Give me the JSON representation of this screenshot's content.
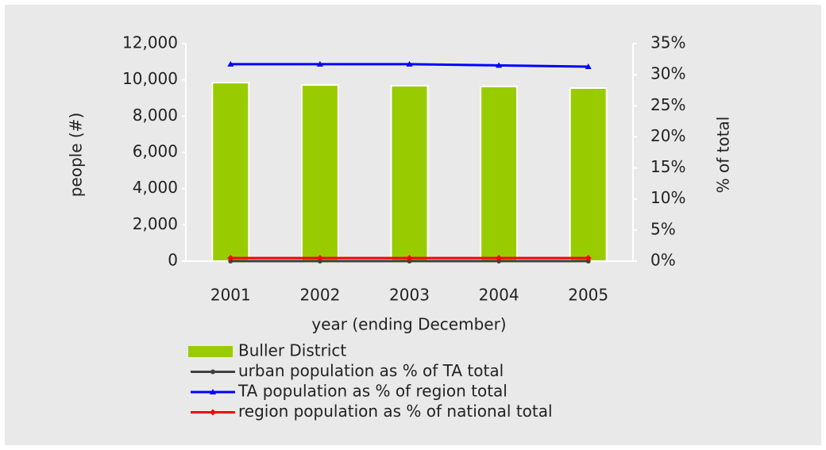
{
  "chart_data": {
    "type": "bar",
    "categories": [
      "2001",
      "2002",
      "2003",
      "2004",
      "2005"
    ],
    "series": [
      {
        "name": "Buller District",
        "color": "#99cc00",
        "values": [
          9850,
          9720,
          9680,
          9640,
          9550
        ]
      },
      {
        "name": "urban population as % of TA total",
        "color": "#404040",
        "axis": "y2",
        "type": "line",
        "marker": "circle",
        "values": [
          0,
          0,
          0,
          0,
          0
        ]
      },
      {
        "name": "TA population as % of region total",
        "color": "#0000ff",
        "axis": "y2",
        "type": "line",
        "marker": "triangle",
        "values": [
          31.7,
          31.7,
          31.7,
          31.5,
          31.3
        ]
      },
      {
        "name": "region population as % of national total",
        "color": "#ff0000",
        "axis": "y2",
        "type": "line",
        "marker": "diamond",
        "values": [
          0.5,
          0.5,
          0.5,
          0.5,
          0.5
        ]
      }
    ],
    "xlabel": "year (ending December)",
    "ylabel": "people (#)",
    "y2label": "% of total",
    "ylim": [
      0,
      12000
    ],
    "yticks": [
      0,
      {
        "value": 2000,
        "label": "2,000"
      },
      {
        "value": 4000,
        "label": "4,000"
      },
      {
        "value": 6000,
        "label": "6,000"
      },
      {
        "value": 8000,
        "label": "8,000"
      },
      {
        "value": 10000,
        "label": "10,000"
      },
      {
        "value": 12000,
        "label": "12,000"
      }
    ],
    "y2lim": [
      0,
      35
    ],
    "y2ticks": [
      {
        "value": 0,
        "label": "0%"
      },
      {
        "value": 5,
        "label": "5%"
      },
      {
        "value": 10,
        "label": "10%"
      },
      {
        "value": 15,
        "label": "15%"
      },
      {
        "value": 20,
        "label": "20%"
      },
      {
        "value": 25,
        "label": "25%"
      },
      {
        "value": 30,
        "label": "30%"
      },
      {
        "value": 35,
        "label": "35%"
      }
    ],
    "legend": "bottom"
  }
}
